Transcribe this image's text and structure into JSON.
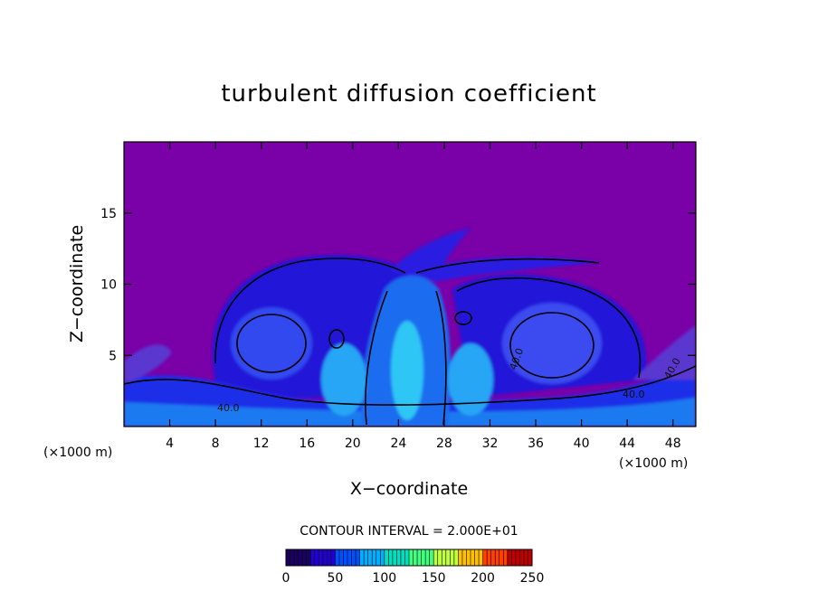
{
  "chart_data": {
    "type": "heatmap",
    "title": "turbulent diffusion coefficient",
    "xlabel": "X−coordinate",
    "ylabel": "Z−coordinate",
    "x_unit_left": "(×1000 m)",
    "x_unit_right": "(×1000 m)",
    "xlim": [
      0,
      50
    ],
    "ylim": [
      0,
      20
    ],
    "x_ticks": [
      4,
      8,
      12,
      16,
      20,
      24,
      28,
      32,
      36,
      40,
      44,
      48
    ],
    "x_tick_labels": [
      "4",
      "8",
      "12",
      "16",
      "20",
      "24",
      "28",
      "32",
      "36",
      "40",
      "44",
      "48"
    ],
    "y_ticks": [
      5,
      10,
      15
    ],
    "y_tick_labels": [
      "5",
      "10",
      "15"
    ],
    "contour_interval_text": "CONTOUR INTERVAL = 2.000E+01",
    "contour_labels": [
      "40.0",
      "40.0",
      "40.0",
      "40.0"
    ],
    "colorbar": {
      "min": 0,
      "max": 250,
      "ticks": [
        0,
        50,
        100,
        150,
        200,
        250
      ],
      "tick_labels": [
        "0",
        "50",
        "100",
        "150",
        "200",
        "250"
      ]
    },
    "background_color": "#7a00a8",
    "colormap": [
      "#1a0060",
      "#2200d0",
      "#0050ff",
      "#00b0ff",
      "#00e0c0",
      "#40ff80",
      "#c0ff40",
      "#ffc000",
      "#ff4000",
      "#c00000"
    ]
  }
}
